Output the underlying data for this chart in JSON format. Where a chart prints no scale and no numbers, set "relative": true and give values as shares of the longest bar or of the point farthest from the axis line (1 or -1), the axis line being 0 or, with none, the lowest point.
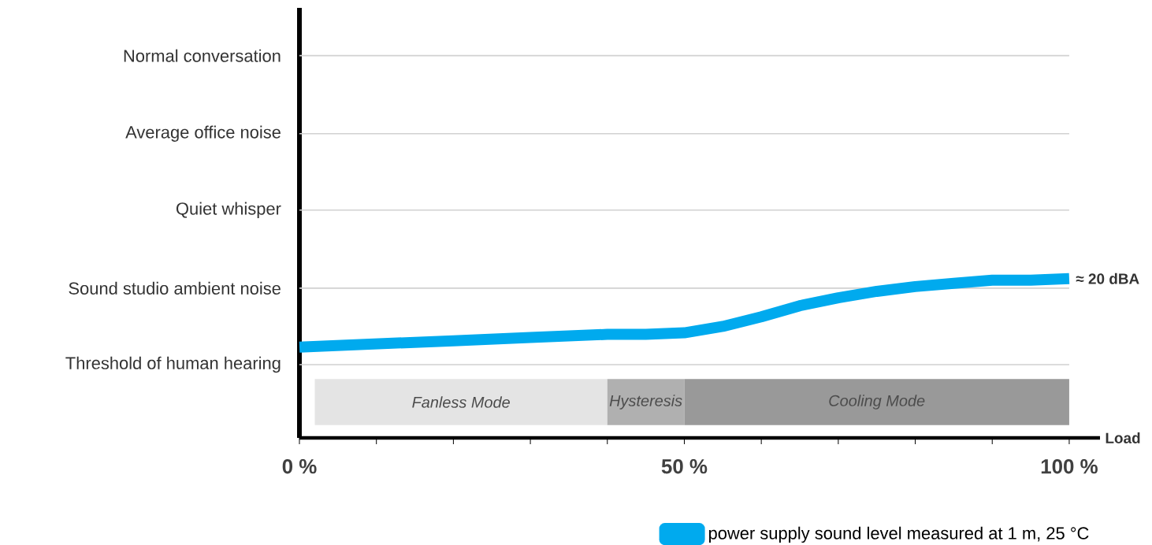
{
  "chart_data": {
    "type": "line",
    "relative": true,
    "x": [
      0,
      10,
      20,
      30,
      40,
      45,
      50,
      55,
      60,
      65,
      70,
      75,
      80,
      85,
      90,
      95,
      100
    ],
    "series": [
      {
        "name": "power supply sound level measured at 1 m, 25 °C",
        "color": "#00aaee",
        "values": [
          0.57,
          0.59,
          0.61,
          0.63,
          0.65,
          0.65,
          0.66,
          0.7,
          0.76,
          0.83,
          0.88,
          0.92,
          0.95,
          0.97,
          0.99,
          0.99,
          1
        ]
      }
    ],
    "xlabel": "Load",
    "xlim": [
      0,
      104
    ],
    "xticks": [
      {
        "value": 0,
        "label": "0 %"
      },
      {
        "value": 10,
        "label": null
      },
      {
        "value": 20,
        "label": null
      },
      {
        "value": 30,
        "label": null
      },
      {
        "value": 40,
        "label": null
      },
      {
        "value": 50,
        "label": "50 %"
      },
      {
        "value": 60,
        "label": null
      },
      {
        "value": 70,
        "label": null
      },
      {
        "value": 80,
        "label": null
      },
      {
        "value": 90,
        "label": null
      },
      {
        "value": 100,
        "label": "100 %"
      }
    ],
    "bands": [
      {
        "axis": "x",
        "from": 2,
        "to": 40,
        "label": "Fanless Mode",
        "color": "#e4e4e4"
      },
      {
        "axis": "x",
        "from": 40,
        "to": 50,
        "label": "Hysteresis",
        "color": "#b0b0b0"
      },
      {
        "axis": "x",
        "from": 50,
        "to": 100,
        "label": "Cooling Mode",
        "color": "#999999"
      }
    ],
    "ref_lines": [
      {
        "axis": "y",
        "value": 2.4,
        "label": "Normal conversation",
        "color": "#d1d1d1"
      },
      {
        "axis": "y",
        "value": 1.91,
        "label": "Average office noise",
        "color": "#d1d1d1"
      },
      {
        "axis": "y",
        "value": 1.43,
        "label": "Quiet whisper",
        "color": "#d1d1d1"
      },
      {
        "axis": "y",
        "value": 0.94,
        "label": "Sound studio ambient noise",
        "color": "#d1d1d1"
      },
      {
        "axis": "y",
        "value": 0.46,
        "label": "Threshold of human hearing",
        "color": "#d1d1d1"
      }
    ],
    "annotations": [
      {
        "text": "≈ 20 dBA",
        "x": 100,
        "y": 1
      }
    ],
    "legend": "bottom",
    "marker": "none",
    "line_style": "solid"
  }
}
